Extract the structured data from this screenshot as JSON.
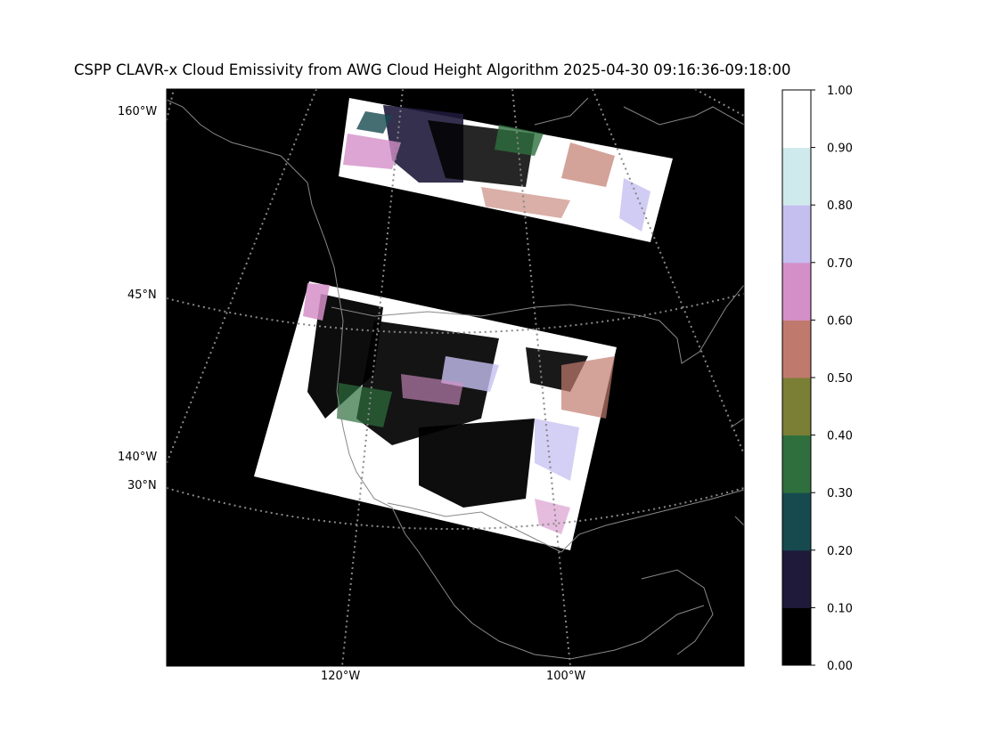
{
  "title": "CSPP CLAVR-x Cloud Emissivity from AWG Cloud Height Algorithm 2025-04-30 09:16:36-09:18:00",
  "map": {
    "left_labels": [
      "160°W",
      "45°N",
      "140°W",
      "30°N"
    ],
    "bottom_labels": [
      "120°W",
      "100°W"
    ],
    "gridline_color": "#888888",
    "coastline_color": "#888888",
    "background_color": "#000000"
  },
  "colorbar": {
    "ticks": [
      "0.00",
      "0.10",
      "0.20",
      "0.30",
      "0.40",
      "0.50",
      "0.60",
      "0.70",
      "0.80",
      "0.90",
      "1.00"
    ],
    "colors": [
      "#000000",
      "#1f1a3a",
      "#174a4f",
      "#2e6f3d",
      "#7a7f35",
      "#c07a6d",
      "#d58fc8",
      "#c5bff0",
      "#cfeaec",
      "#ffffff"
    ]
  }
}
